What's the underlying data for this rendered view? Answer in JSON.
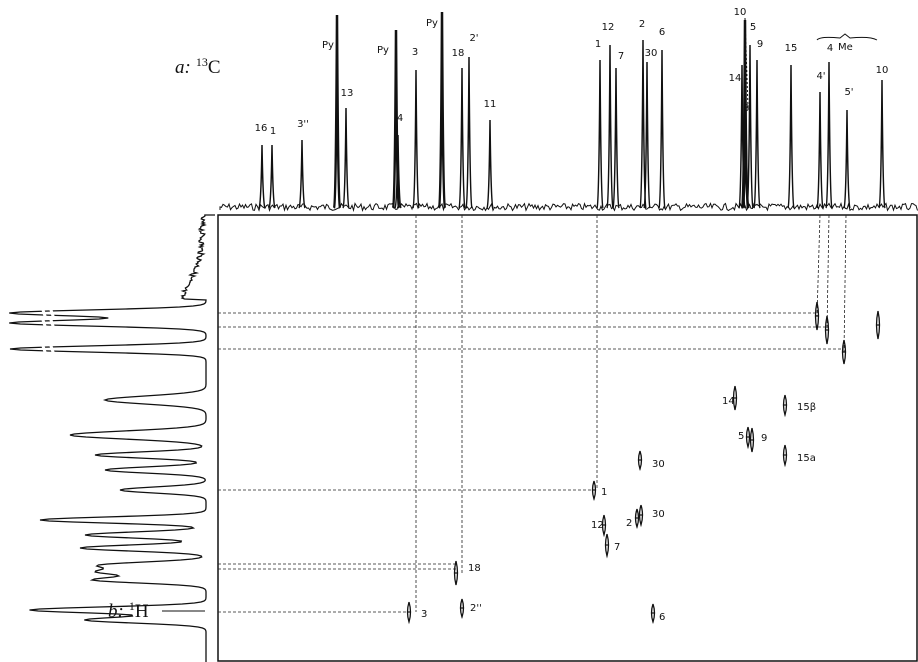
{
  "panel_a": {
    "prefix": "a:",
    "mass": "13",
    "element": "C"
  },
  "panel_b": {
    "prefix": "b:",
    "mass": "1",
    "element": "H"
  },
  "carbon_labels": [
    "16",
    "1",
    "3''",
    "13",
    "Py",
    "Py",
    "4",
    "3",
    "Py",
    "18",
    "2'",
    "11",
    "1",
    "12",
    "7",
    "2",
    "30",
    "6",
    "14",
    "10",
    "5",
    "8",
    "9",
    "15",
    "4'",
    "4",
    "5'",
    "10"
  ],
  "group_label": "Me",
  "cross_peak_labels": [
    "14",
    "15β",
    "5",
    "9",
    "15a",
    "30",
    "1",
    "12",
    "2",
    "30",
    "7",
    "18",
    "3",
    "2''",
    "6"
  ]
}
